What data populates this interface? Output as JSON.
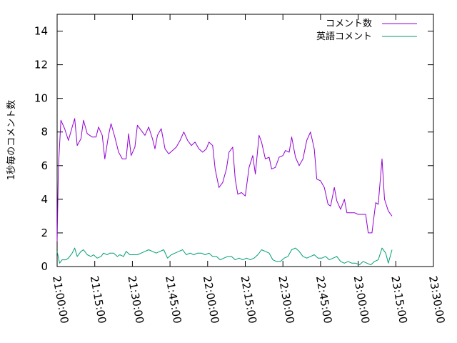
{
  "chart_data": {
    "type": "line",
    "ylabel": "1秒毎のコメント数",
    "xlim": [
      "21:00:00",
      "23:30:00"
    ],
    "ylim": [
      0,
      15
    ],
    "grid": false,
    "legend_position": "top-right",
    "x_ticks": [
      "21:00:00",
      "21:15:00",
      "21:30:00",
      "21:45:00",
      "22:00:00",
      "22:15:00",
      "22:30:00",
      "22:45:00",
      "23:00:00",
      "23:15:00",
      "23:30:00"
    ],
    "y_ticks": [
      0,
      2,
      4,
      6,
      8,
      10,
      12,
      14
    ],
    "series": [
      {
        "name": "コメント数",
        "color": "#9400d3",
        "points": [
          [
            "21:00:00",
            1.5
          ],
          [
            "21:00:30",
            5.9
          ],
          [
            "21:01:30",
            8.7
          ],
          [
            "21:03:00",
            8.2
          ],
          [
            "21:04:30",
            7.5
          ],
          [
            "21:06:00",
            8.3
          ],
          [
            "21:07:00",
            8.8
          ],
          [
            "21:08:00",
            7.2
          ],
          [
            "21:09:30",
            7.6
          ],
          [
            "21:10:30",
            8.7
          ],
          [
            "21:12:00",
            7.9
          ],
          [
            "21:14:00",
            7.7
          ],
          [
            "21:15:30",
            7.7
          ],
          [
            "21:16:30",
            8.3
          ],
          [
            "21:18:00",
            7.8
          ],
          [
            "21:19:00",
            6.4
          ],
          [
            "21:20:30",
            7.8
          ],
          [
            "21:21:30",
            8.5
          ],
          [
            "21:23:00",
            7.7
          ],
          [
            "21:24:30",
            6.8
          ],
          [
            "21:26:00",
            6.4
          ],
          [
            "21:27:30",
            6.4
          ],
          [
            "21:28:30",
            7.9
          ],
          [
            "21:29:30",
            6.6
          ],
          [
            "21:31:00",
            7.1
          ],
          [
            "21:32:00",
            8.4
          ],
          [
            "21:33:30",
            8.1
          ],
          [
            "21:35:00",
            7.8
          ],
          [
            "21:36:30",
            8.3
          ],
          [
            "21:38:00",
            7.6
          ],
          [
            "21:39:00",
            7.0
          ],
          [
            "21:40:00",
            7.8
          ],
          [
            "21:41:30",
            8.2
          ],
          [
            "21:43:00",
            7.0
          ],
          [
            "21:44:30",
            6.7
          ],
          [
            "21:46:00",
            6.9
          ],
          [
            "21:47:30",
            7.1
          ],
          [
            "21:49:00",
            7.5
          ],
          [
            "21:50:30",
            8.0
          ],
          [
            "21:52:00",
            7.5
          ],
          [
            "21:53:30",
            7.2
          ],
          [
            "21:55:00",
            7.4
          ],
          [
            "21:56:30",
            7.0
          ],
          [
            "21:58:00",
            6.8
          ],
          [
            "21:59:30",
            7.0
          ],
          [
            "22:00:30",
            7.4
          ],
          [
            "22:02:00",
            7.2
          ],
          [
            "22:03:00",
            5.8
          ],
          [
            "22:04:30",
            4.7
          ],
          [
            "22:06:00",
            5.0
          ],
          [
            "22:07:30",
            5.8
          ],
          [
            "22:08:30",
            6.8
          ],
          [
            "22:10:00",
            7.1
          ],
          [
            "22:11:00",
            5.2
          ],
          [
            "22:12:00",
            4.3
          ],
          [
            "22:13:30",
            4.4
          ],
          [
            "22:15:00",
            4.2
          ],
          [
            "22:16:30",
            5.9
          ],
          [
            "22:18:00",
            6.6
          ],
          [
            "22:19:00",
            5.5
          ],
          [
            "22:20:30",
            7.8
          ],
          [
            "22:21:30",
            7.4
          ],
          [
            "22:23:00",
            6.4
          ],
          [
            "22:24:30",
            6.5
          ],
          [
            "22:25:30",
            5.8
          ],
          [
            "22:27:00",
            5.9
          ],
          [
            "22:28:30",
            6.5
          ],
          [
            "22:30:00",
            6.6
          ],
          [
            "22:31:00",
            6.9
          ],
          [
            "22:32:30",
            6.8
          ],
          [
            "22:33:30",
            7.7
          ],
          [
            "22:35:00",
            6.5
          ],
          [
            "22:36:30",
            6.0
          ],
          [
            "22:38:00",
            6.4
          ],
          [
            "22:39:30",
            7.5
          ],
          [
            "22:41:00",
            8.0
          ],
          [
            "22:42:30",
            7.0
          ],
          [
            "22:43:30",
            5.2
          ],
          [
            "22:45:00",
            5.1
          ],
          [
            "22:46:30",
            4.7
          ],
          [
            "22:48:00",
            3.7
          ],
          [
            "22:49:00",
            3.6
          ],
          [
            "22:50:30",
            4.7
          ],
          [
            "22:51:30",
            3.9
          ],
          [
            "22:53:00",
            3.4
          ],
          [
            "22:54:30",
            4.0
          ],
          [
            "22:55:30",
            3.2
          ],
          [
            "22:57:00",
            3.2
          ],
          [
            "22:58:30",
            3.2
          ],
          [
            "23:00:00",
            3.1
          ],
          [
            "23:01:30",
            3.1
          ],
          [
            "23:03:00",
            3.1
          ],
          [
            "23:04:00",
            2.0
          ],
          [
            "23:05:30",
            2.0
          ],
          [
            "23:07:00",
            3.8
          ],
          [
            "23:08:00",
            3.7
          ],
          [
            "23:09:30",
            6.4
          ],
          [
            "23:10:30",
            4.0
          ],
          [
            "23:12:00",
            3.3
          ],
          [
            "23:13:30",
            3.0
          ]
        ]
      },
      {
        "name": "英語コメント",
        "color": "#009e73",
        "points": [
          [
            "21:00:00",
            0.9
          ],
          [
            "21:01:00",
            0.2
          ],
          [
            "21:02:00",
            0.4
          ],
          [
            "21:03:30",
            0.4
          ],
          [
            "21:04:30",
            0.5
          ],
          [
            "21:06:00",
            0.8
          ],
          [
            "21:07:00",
            1.1
          ],
          [
            "21:08:00",
            0.6
          ],
          [
            "21:09:30",
            0.9
          ],
          [
            "21:10:30",
            1.0
          ],
          [
            "21:12:00",
            0.7
          ],
          [
            "21:13:30",
            0.6
          ],
          [
            "21:14:30",
            0.7
          ],
          [
            "21:16:00",
            0.5
          ],
          [
            "21:17:30",
            0.6
          ],
          [
            "21:18:30",
            0.8
          ],
          [
            "21:20:00",
            0.7
          ],
          [
            "21:21:00",
            0.8
          ],
          [
            "21:22:30",
            0.8
          ],
          [
            "21:24:00",
            0.6
          ],
          [
            "21:25:00",
            0.7
          ],
          [
            "21:26:30",
            0.6
          ],
          [
            "21:27:30",
            0.9
          ],
          [
            "21:29:00",
            0.7
          ],
          [
            "21:30:30",
            0.7
          ],
          [
            "21:32:00",
            0.7
          ],
          [
            "21:33:30",
            0.8
          ],
          [
            "21:35:00",
            0.9
          ],
          [
            "21:36:30",
            1.0
          ],
          [
            "21:38:00",
            0.9
          ],
          [
            "21:39:30",
            0.8
          ],
          [
            "21:41:00",
            0.9
          ],
          [
            "21:42:30",
            1.0
          ],
          [
            "21:44:00",
            0.5
          ],
          [
            "21:45:30",
            0.7
          ],
          [
            "21:47:00",
            0.8
          ],
          [
            "21:48:30",
            0.9
          ],
          [
            "21:50:00",
            1.0
          ],
          [
            "21:51:30",
            0.7
          ],
          [
            "21:53:00",
            0.8
          ],
          [
            "21:54:30",
            0.7
          ],
          [
            "21:56:00",
            0.8
          ],
          [
            "21:57:30",
            0.8
          ],
          [
            "21:59:00",
            0.7
          ],
          [
            "22:00:30",
            0.8
          ],
          [
            "22:02:00",
            0.6
          ],
          [
            "22:03:30",
            0.6
          ],
          [
            "22:05:00",
            0.4
          ],
          [
            "22:06:30",
            0.5
          ],
          [
            "22:08:00",
            0.6
          ],
          [
            "22:09:30",
            0.6
          ],
          [
            "22:11:00",
            0.4
          ],
          [
            "22:12:30",
            0.5
          ],
          [
            "22:14:00",
            0.4
          ],
          [
            "22:15:30",
            0.5
          ],
          [
            "22:17:00",
            0.4
          ],
          [
            "22:18:30",
            0.5
          ],
          [
            "22:20:00",
            0.7
          ],
          [
            "22:21:30",
            1.0
          ],
          [
            "22:23:00",
            0.9
          ],
          [
            "22:24:30",
            0.8
          ],
          [
            "22:26:00",
            0.4
          ],
          [
            "22:27:30",
            0.3
          ],
          [
            "22:29:00",
            0.3
          ],
          [
            "22:30:30",
            0.5
          ],
          [
            "22:32:00",
            0.6
          ],
          [
            "22:33:30",
            1.0
          ],
          [
            "22:35:00",
            1.1
          ],
          [
            "22:36:30",
            0.9
          ],
          [
            "22:38:00",
            0.6
          ],
          [
            "22:39:30",
            0.5
          ],
          [
            "22:41:00",
            0.6
          ],
          [
            "22:42:30",
            0.7
          ],
          [
            "22:44:00",
            0.5
          ],
          [
            "22:45:30",
            0.5
          ],
          [
            "22:47:00",
            0.6
          ],
          [
            "22:48:30",
            0.4
          ],
          [
            "22:50:00",
            0.5
          ],
          [
            "22:51:30",
            0.6
          ],
          [
            "22:53:00",
            0.3
          ],
          [
            "22:54:30",
            0.2
          ],
          [
            "22:56:00",
            0.3
          ],
          [
            "22:57:30",
            0.2
          ],
          [
            "22:59:00",
            0.2
          ],
          [
            "23:00:30",
            0.1
          ],
          [
            "23:02:00",
            0.3
          ],
          [
            "23:03:30",
            0.2
          ],
          [
            "23:05:00",
            0.1
          ],
          [
            "23:06:30",
            0.3
          ],
          [
            "23:08:00",
            0.4
          ],
          [
            "23:09:30",
            1.1
          ],
          [
            "23:11:00",
            0.8
          ],
          [
            "23:12:00",
            0.2
          ],
          [
            "23:13:30",
            1.0
          ]
        ]
      }
    ]
  }
}
